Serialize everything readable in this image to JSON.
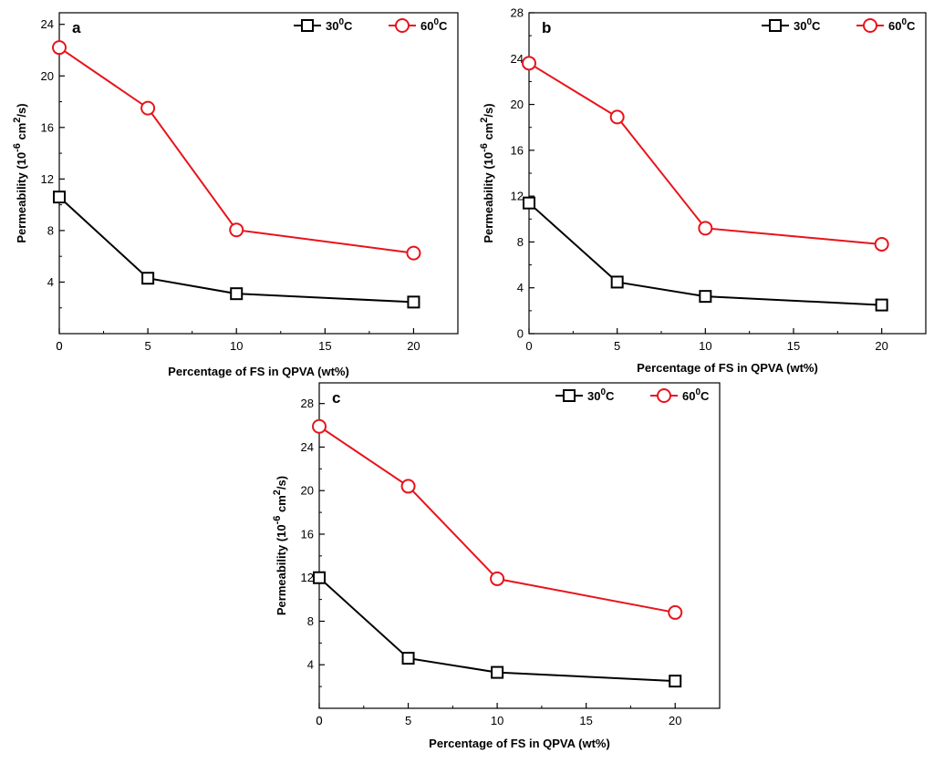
{
  "chart_data": [
    {
      "type": "line",
      "panel": "a",
      "xlabel": "Percentage of FS in QPVA (wt%)",
      "ylabel": {
        "base": "Permeability (10",
        "exp1": "-6",
        "mid": " cm",
        "exp2": "2",
        "tail": "/s)"
      },
      "xlim": [
        0,
        22.5
      ],
      "ylim": [
        0,
        24.9
      ],
      "xticks": [
        0,
        5,
        10,
        15,
        20
      ],
      "yticks": [
        4,
        8,
        12,
        16,
        20,
        24
      ],
      "y_zero_label": "0",
      "legend_position": "top-right",
      "grid": false,
      "series": [
        {
          "name": "30",
          "name_sup": "0",
          "name_suffix": "C",
          "color": "#000000",
          "marker": "square",
          "x": [
            0,
            5,
            10,
            20
          ],
          "values": [
            10.6,
            4.3,
            3.1,
            2.45
          ]
        },
        {
          "name": "60",
          "name_sup": "0",
          "name_suffix": "C",
          "color": "#e8131b",
          "marker": "circle",
          "x": [
            0,
            5,
            10,
            20
          ],
          "values": [
            22.2,
            17.5,
            8.05,
            6.25
          ]
        }
      ]
    },
    {
      "type": "line",
      "panel": "b",
      "xlabel": "Percentage of FS in QPVA (wt%)",
      "ylabel": {
        "base": "Permeability (10",
        "exp1": "-6",
        "mid": " cm",
        "exp2": "2",
        "tail": "/s)"
      },
      "xlim": [
        0,
        22.5
      ],
      "ylim": [
        0,
        28
      ],
      "xticks": [
        0,
        5,
        10,
        15,
        20
      ],
      "yticks": [
        0,
        4,
        8,
        12,
        16,
        20,
        24,
        28
      ],
      "legend_position": "top-right",
      "grid": false,
      "series": [
        {
          "name": "30",
          "name_sup": "0",
          "name_suffix": "C",
          "color": "#000000",
          "marker": "square",
          "x": [
            0,
            5,
            10,
            20
          ],
          "values": [
            11.4,
            4.5,
            3.25,
            2.5
          ]
        },
        {
          "name": "60",
          "name_sup": "0",
          "name_suffix": "C",
          "color": "#e8131b",
          "marker": "circle",
          "x": [
            0,
            5,
            10,
            20
          ],
          "values": [
            23.6,
            18.9,
            9.2,
            7.8
          ]
        }
      ]
    },
    {
      "type": "line",
      "panel": "c",
      "xlabel": "Percentage of FS in QPVA (wt%)",
      "ylabel": {
        "base": "Permeability (10",
        "exp1": "-6",
        "mid": " cm",
        "exp2": "2",
        "tail": "/s)"
      },
      "xlim": [
        0,
        22.5
      ],
      "ylim": [
        0,
        29.9
      ],
      "xticks": [
        0,
        5,
        10,
        15,
        20
      ],
      "yticks": [
        4,
        8,
        12,
        16,
        20,
        24,
        28
      ],
      "y_zero_label": "0",
      "legend_position": "top-right",
      "grid": false,
      "series": [
        {
          "name": "30",
          "name_sup": "0",
          "name_suffix": "C",
          "color": "#000000",
          "marker": "square",
          "x": [
            0,
            5,
            10,
            20
          ],
          "values": [
            12.0,
            4.6,
            3.3,
            2.5
          ]
        },
        {
          "name": "60",
          "name_sup": "0",
          "name_suffix": "C",
          "color": "#e8131b",
          "marker": "circle",
          "x": [
            0,
            5,
            10,
            20
          ],
          "values": [
            25.9,
            20.4,
            11.9,
            8.8
          ]
        }
      ]
    }
  ]
}
